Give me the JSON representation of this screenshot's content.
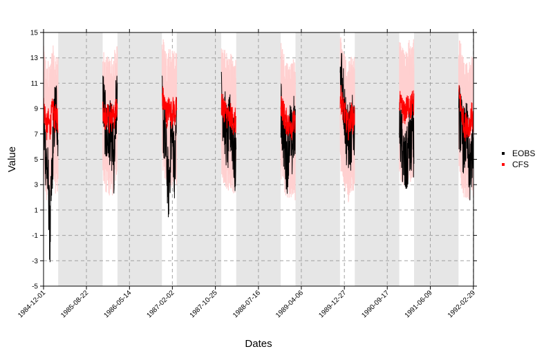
{
  "chart_data": {
    "type": "line",
    "title": "",
    "xlabel": "Dates",
    "ylabel": "Value",
    "ylim": [
      -5,
      15
    ],
    "xlim": [
      "1984-12-01",
      "1992-03-01"
    ],
    "y_ticks": [
      -5,
      -3,
      -1,
      1,
      3,
      5,
      7,
      9,
      11,
      13,
      15
    ],
    "x_ticks": [
      "1984-12-01",
      "1985-08-22",
      "1986-05-14",
      "1987-02-02",
      "1987-10-25",
      "1988-07-16",
      "1989-04-06",
      "1989-12-27",
      "1990-09-17",
      "1991-06-09",
      "1992-02-29"
    ],
    "grid": true,
    "legend_position": "right",
    "shaded_periods": [
      [
        "1985-03-01",
        "1985-11-30"
      ],
      [
        "1986-03-01",
        "1986-11-30"
      ],
      [
        "1987-03-01",
        "1987-11-30"
      ],
      [
        "1988-03-01",
        "1988-11-30"
      ],
      [
        "1989-03-01",
        "1989-11-30"
      ],
      [
        "1990-03-01",
        "1990-11-30"
      ],
      [
        "1991-03-01",
        "1991-11-30"
      ]
    ],
    "winter_periods": [
      [
        "1984-12-01",
        "1985-02-28"
      ],
      [
        "1985-12-01",
        "1986-02-28"
      ],
      [
        "1986-12-01",
        "1987-02-28"
      ],
      [
        "1987-12-01",
        "1988-02-29"
      ],
      [
        "1988-12-01",
        "1989-02-28"
      ],
      [
        "1989-12-01",
        "1990-02-28"
      ],
      [
        "1990-12-01",
        "1991-02-28"
      ],
      [
        "1991-12-01",
        "1992-02-29"
      ]
    ],
    "series": [
      {
        "name": "EOBS",
        "color": "#000000",
        "winter_profiles": [
          [
            7.5,
            6.0,
            4.5,
            3.0,
            -1.5,
            3.0,
            6.5,
            8.5,
            9.0,
            7.5
          ],
          [
            10.0,
            8.5,
            7.0,
            6.5,
            7.5,
            6.5,
            7.0,
            3.5,
            8.5,
            9.5
          ],
          [
            9.0,
            7.5,
            6.5,
            4.5,
            2.5,
            5.0,
            7.5,
            6.0,
            4.0,
            8.5
          ],
          [
            9.5,
            9.0,
            8.0,
            7.0,
            6.5,
            7.5,
            8.0,
            6.5,
            5.0,
            4.5
          ],
          [
            8.5,
            8.0,
            6.5,
            5.5,
            5.0,
            6.5,
            7.0,
            6.0,
            7.5,
            6.5
          ],
          [
            11.5,
            12.0,
            10.0,
            8.5,
            7.0,
            6.5,
            7.0,
            6.5,
            8.0,
            7.5
          ],
          [
            8.0,
            6.5,
            5.5,
            4.5,
            4.5,
            5.0,
            6.5,
            5.5,
            7.5,
            6.0
          ],
          [
            8.5,
            8.0,
            7.0,
            6.5,
            6.5,
            7.0,
            5.5,
            3.5,
            5.5,
            6.0
          ]
        ]
      },
      {
        "name": "CFS",
        "color": "#ff0000",
        "band_color": "#ffd0d0",
        "winter_profiles": [
          [
            9.0,
            8.5,
            7.5,
            8.0,
            7.5,
            8.5,
            9.0,
            8.0,
            8.5,
            8.0
          ],
          [
            9.0,
            8.5,
            8.0,
            8.5,
            8.0,
            8.5,
            8.0,
            8.5,
            9.0,
            9.5
          ],
          [
            10.0,
            9.5,
            9.0,
            8.5,
            9.0,
            9.0,
            8.5,
            9.0,
            8.5,
            9.0
          ],
          [
            9.5,
            9.0,
            9.0,
            8.5,
            8.5,
            8.0,
            8.5,
            8.0,
            8.0,
            8.0
          ],
          [
            9.5,
            9.0,
            8.5,
            8.0,
            8.0,
            7.5,
            8.0,
            7.5,
            8.0,
            7.5
          ],
          [
            10.0,
            9.5,
            9.0,
            8.5,
            8.0,
            7.5,
            8.0,
            8.5,
            8.0,
            8.5
          ],
          [
            9.5,
            9.0,
            9.0,
            8.5,
            9.0,
            9.0,
            9.5,
            9.0,
            9.5,
            9.5
          ],
          [
            10.0,
            9.5,
            8.5,
            8.0,
            7.5,
            8.0,
            7.5,
            8.0,
            8.5,
            8.0
          ]
        ]
      }
    ]
  }
}
